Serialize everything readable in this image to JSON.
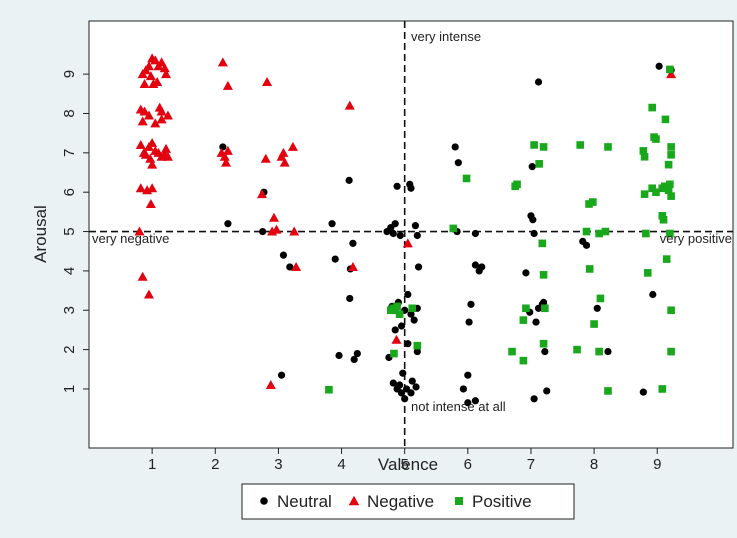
{
  "chart_data": {
    "type": "scatter",
    "title": "",
    "xlabel": "Valence",
    "ylabel": "Arousal",
    "xlim": [
      0,
      10.2
    ],
    "ylim": [
      -0.5,
      10.35
    ],
    "xticks": [
      "1",
      "2",
      "3",
      "4",
      "5",
      "6",
      "7",
      "8",
      "9"
    ],
    "yticks": [
      "1",
      "2",
      "3",
      "4",
      "5",
      "6",
      "7",
      "8",
      "9"
    ],
    "grid": false,
    "reference_lines": {
      "x": 5,
      "y": 5
    },
    "annotations": {
      "top": "very intense",
      "bottom": "not intense at all",
      "left": "very negative",
      "right": "very positive"
    },
    "legend_position": "bottom",
    "series": [
      {
        "name": "Neutral",
        "marker": "circle",
        "color": "#000000",
        "points": [
          [
            2.12,
            7.15
          ],
          [
            2.2,
            5.2
          ],
          [
            2.75,
            5.0
          ],
          [
            2.77,
            6.0
          ],
          [
            3.08,
            4.4
          ],
          [
            3.18,
            4.1
          ],
          [
            3.05,
            1.35
          ],
          [
            3.85,
            5.2
          ],
          [
            3.9,
            4.3
          ],
          [
            3.96,
            1.85
          ],
          [
            4.12,
            6.3
          ],
          [
            4.13,
            3.3
          ],
          [
            4.14,
            4.05
          ],
          [
            4.18,
            4.7
          ],
          [
            4.2,
            1.75
          ],
          [
            4.25,
            1.9
          ],
          [
            4.72,
            5.0
          ],
          [
            4.78,
            5.1
          ],
          [
            4.82,
            4.95
          ],
          [
            4.85,
            5.2
          ],
          [
            4.88,
            6.15
          ],
          [
            4.93,
            4.9
          ],
          [
            5.08,
            6.2
          ],
          [
            5.1,
            6.1
          ],
          [
            5.17,
            5.15
          ],
          [
            5.2,
            4.9
          ],
          [
            4.8,
            3.1
          ],
          [
            4.9,
            3.2
          ],
          [
            5.0,
            3.0
          ],
          [
            5.1,
            2.9
          ],
          [
            5.15,
            2.75
          ],
          [
            4.85,
            2.5
          ],
          [
            4.95,
            2.6
          ],
          [
            5.05,
            2.15
          ],
          [
            5.2,
            2.1
          ],
          [
            5.2,
            1.95
          ],
          [
            4.75,
            1.8
          ],
          [
            4.82,
            1.15
          ],
          [
            4.88,
            1.0
          ],
          [
            4.92,
            1.1
          ],
          [
            4.95,
            0.9
          ],
          [
            4.97,
            1.4
          ],
          [
            5.0,
            0.75
          ],
          [
            5.03,
            1.0
          ],
          [
            5.1,
            0.9
          ],
          [
            5.12,
            1.2
          ],
          [
            5.18,
            1.05
          ],
          [
            5.2,
            3.05
          ],
          [
            5.22,
            4.1
          ],
          [
            5.05,
            3.4
          ],
          [
            5.8,
            7.15
          ],
          [
            5.85,
            6.75
          ],
          [
            5.83,
            5.0
          ],
          [
            6.12,
            4.95
          ],
          [
            6.12,
            4.15
          ],
          [
            6.18,
            4.0
          ],
          [
            6.22,
            4.1
          ],
          [
            6.05,
            3.15
          ],
          [
            6.02,
            2.7
          ],
          [
            5.93,
            1.0
          ],
          [
            6.0,
            1.35
          ],
          [
            6.0,
            0.65
          ],
          [
            6.12,
            0.7
          ],
          [
            6.92,
            3.95
          ],
          [
            7.0,
            5.4
          ],
          [
            7.03,
            5.3
          ],
          [
            7.02,
            6.65
          ],
          [
            7.12,
            8.8
          ],
          [
            7.05,
            4.95
          ],
          [
            7.12,
            3.05
          ],
          [
            6.98,
            2.95
          ],
          [
            7.08,
            2.7
          ],
          [
            7.18,
            3.15
          ],
          [
            7.2,
            3.2
          ],
          [
            7.22,
            1.95
          ],
          [
            7.25,
            0.95
          ],
          [
            7.05,
            0.75
          ],
          [
            7.82,
            4.75
          ],
          [
            7.88,
            4.65
          ],
          [
            8.05,
            3.05
          ],
          [
            8.22,
            1.95
          ],
          [
            8.78,
            0.92
          ],
          [
            8.93,
            3.4
          ],
          [
            9.03,
            9.2
          ],
          [
            9.22,
            9.1
          ]
        ]
      },
      {
        "name": "Negative",
        "marker": "triangle",
        "color": "#e3000f",
        "points": [
          [
            0.85,
            9.0
          ],
          [
            0.9,
            9.1
          ],
          [
            0.95,
            9.2
          ],
          [
            1.0,
            9.4
          ],
          [
            1.05,
            9.35
          ],
          [
            1.1,
            9.2
          ],
          [
            1.15,
            9.3
          ],
          [
            1.2,
            9.15
          ],
          [
            1.22,
            9.0
          ],
          [
            0.98,
            8.95
          ],
          [
            0.88,
            8.75
          ],
          [
            1.02,
            8.75
          ],
          [
            1.08,
            8.8
          ],
          [
            0.82,
            8.1
          ],
          [
            0.88,
            8.05
          ],
          [
            1.12,
            8.15
          ],
          [
            1.15,
            8.05
          ],
          [
            0.95,
            7.95
          ],
          [
            1.25,
            7.95
          ],
          [
            0.85,
            7.8
          ],
          [
            1.05,
            7.75
          ],
          [
            1.15,
            7.85
          ],
          [
            0.82,
            7.2
          ],
          [
            0.87,
            7.0
          ],
          [
            0.9,
            6.95
          ],
          [
            0.95,
            7.15
          ],
          [
            1.0,
            7.25
          ],
          [
            1.05,
            7.05
          ],
          [
            1.1,
            7.0
          ],
          [
            1.15,
            6.9
          ],
          [
            1.2,
            6.95
          ],
          [
            1.22,
            7.1
          ],
          [
            1.25,
            6.9
          ],
          [
            1.0,
            6.7
          ],
          [
            0.97,
            6.85
          ],
          [
            0.82,
            6.1
          ],
          [
            0.92,
            6.05
          ],
          [
            1.0,
            6.1
          ],
          [
            0.98,
            5.7
          ],
          [
            0.8,
            5.0
          ],
          [
            0.85,
            3.85
          ],
          [
            0.95,
            3.4
          ],
          [
            2.12,
            9.3
          ],
          [
            2.2,
            8.7
          ],
          [
            2.1,
            7.0
          ],
          [
            2.15,
            6.9
          ],
          [
            2.2,
            7.05
          ],
          [
            2.17,
            6.75
          ],
          [
            2.82,
            8.8
          ],
          [
            2.8,
            6.85
          ],
          [
            2.74,
            5.95
          ],
          [
            2.9,
            5.0
          ],
          [
            2.93,
            5.35
          ],
          [
            2.97,
            5.05
          ],
          [
            3.05,
            6.9
          ],
          [
            3.08,
            7.0
          ],
          [
            3.1,
            6.75
          ],
          [
            3.23,
            7.15
          ],
          [
            3.25,
            5.0
          ],
          [
            3.28,
            4.1
          ],
          [
            4.13,
            8.2
          ],
          [
            4.18,
            4.1
          ],
          [
            2.88,
            1.1
          ],
          [
            4.87,
            2.25
          ],
          [
            5.05,
            4.7
          ],
          [
            9.22,
            9.0
          ]
        ]
      },
      {
        "name": "Positive",
        "marker": "square",
        "color": "#19a81c",
        "points": [
          [
            3.8,
            0.98
          ],
          [
            4.78,
            3.0
          ],
          [
            4.82,
            3.05
          ],
          [
            4.85,
            3.0
          ],
          [
            4.88,
            3.1
          ],
          [
            4.92,
            2.9
          ],
          [
            5.12,
            3.05
          ],
          [
            5.2,
            2.1
          ],
          [
            4.83,
            1.9
          ],
          [
            5.77,
            5.08
          ],
          [
            5.98,
            6.35
          ],
          [
            6.75,
            6.15
          ],
          [
            6.78,
            6.2
          ],
          [
            6.92,
            3.05
          ],
          [
            6.88,
            2.75
          ],
          [
            6.7,
            1.95
          ],
          [
            6.88,
            1.72
          ],
          [
            7.05,
            7.2
          ],
          [
            7.2,
            7.15
          ],
          [
            7.13,
            6.72
          ],
          [
            7.18,
            4.7
          ],
          [
            7.2,
            3.9
          ],
          [
            7.22,
            3.05
          ],
          [
            7.2,
            2.15
          ],
          [
            7.78,
            7.2
          ],
          [
            8.22,
            7.15
          ],
          [
            7.92,
            5.7
          ],
          [
            7.98,
            5.75
          ],
          [
            7.88,
            5.0
          ],
          [
            8.08,
            4.95
          ],
          [
            8.18,
            5.0
          ],
          [
            7.93,
            4.05
          ],
          [
            8.1,
            3.3
          ],
          [
            8.0,
            2.65
          ],
          [
            7.73,
            2.0
          ],
          [
            8.08,
            1.95
          ],
          [
            8.22,
            0.95
          ],
          [
            8.92,
            8.15
          ],
          [
            9.13,
            7.85
          ],
          [
            8.95,
            7.4
          ],
          [
            8.98,
            7.35
          ],
          [
            8.78,
            7.05
          ],
          [
            8.8,
            6.9
          ],
          [
            9.22,
            7.15
          ],
          [
            9.22,
            6.95
          ],
          [
            9.18,
            6.7
          ],
          [
            8.8,
            5.95
          ],
          [
            8.92,
            6.1
          ],
          [
            8.98,
            6.0
          ],
          [
            9.08,
            6.1
          ],
          [
            9.12,
            6.15
          ],
          [
            9.18,
            6.05
          ],
          [
            9.2,
            6.2
          ],
          [
            9.22,
            5.9
          ],
          [
            9.1,
            5.3
          ],
          [
            9.08,
            5.4
          ],
          [
            8.82,
            4.95
          ],
          [
            9.2,
            4.95
          ],
          [
            8.85,
            3.95
          ],
          [
            9.15,
            4.3
          ],
          [
            9.22,
            3.0
          ],
          [
            9.22,
            1.95
          ],
          [
            9.08,
            1.0
          ],
          [
            9.2,
            9.12
          ]
        ]
      }
    ]
  }
}
